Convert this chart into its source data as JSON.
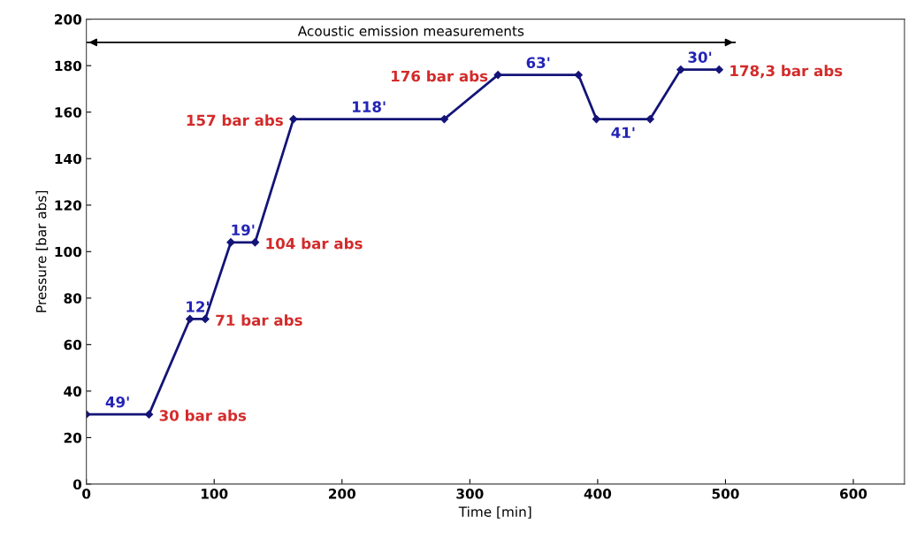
{
  "chart_data": {
    "type": "line",
    "xlabel": "Time [min]",
    "ylabel": "Pressure [bar abs]",
    "x": [
      0,
      49,
      81,
      93,
      113,
      132,
      162,
      280,
      322,
      385,
      399,
      441,
      465,
      495
    ],
    "series": [
      {
        "color": "#141478",
        "values": [
          30,
          30,
          71,
          71,
          104,
          104,
          157,
          157,
          176,
          176,
          157,
          157,
          178.3,
          178.3
        ],
        "value_labels": [
          null,
          "30 bar abs",
          null,
          "71 bar abs",
          null,
          "104 bar abs",
          "157 bar abs",
          null,
          "176 bar abs",
          null,
          null,
          null,
          null,
          "178,3 bar abs"
        ]
      },
      {
        "type": "line",
        "name": "Acoustic emission measurements",
        "color": "#000000",
        "marker": "none",
        "x": [
          0,
          508
        ],
        "values": [
          190,
          190
        ]
      }
    ],
    "marker": "diamond",
    "line_style": "solid",
    "xlim": [
      0,
      640
    ],
    "xticks": [
      0,
      100,
      200,
      300,
      400,
      500,
      600
    ],
    "ylim": [
      0,
      200
    ],
    "yticks": [
      0,
      20,
      40,
      60,
      80,
      100,
      120,
      140,
      160,
      180,
      200
    ],
    "grid": false,
    "legend": false,
    "annotations": [
      {
        "text": "49'",
        "x": 24.5,
        "y": 30
      },
      {
        "text": "12'",
        "x": 87,
        "y": 71
      },
      {
        "text": "19'",
        "x": 122.5,
        "y": 104
      },
      {
        "text": "118'",
        "x": 221,
        "y": 157
      },
      {
        "text": "63'",
        "x": 353.5,
        "y": 176
      },
      {
        "text": "41'",
        "x": 420,
        "y": 157
      },
      {
        "text": "30'",
        "x": 480,
        "y": 178.3
      }
    ]
  }
}
